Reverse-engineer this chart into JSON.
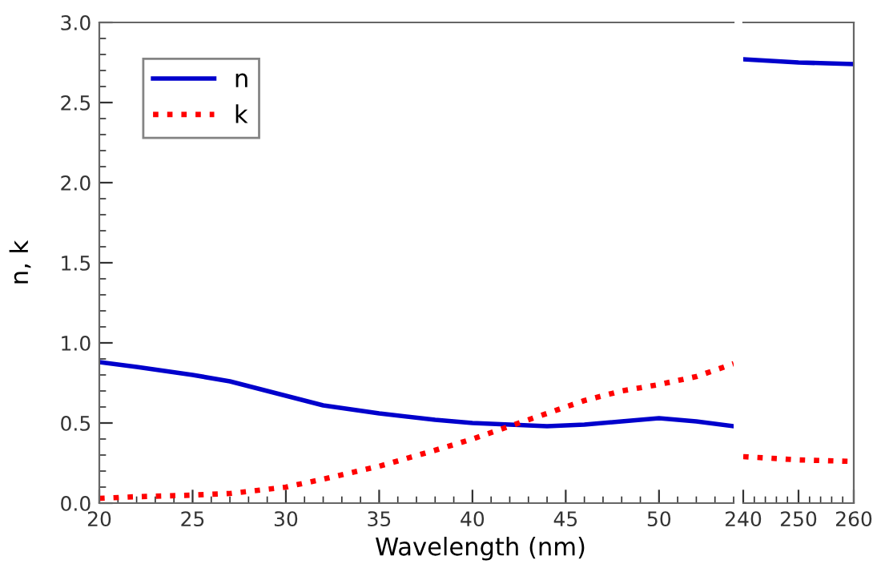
{
  "chart_data": [
    {
      "type": "line",
      "xlabel": "Wavelength (nm)",
      "ylabel": "n, k",
      "xlim": [
        20,
        54
      ],
      "xticks": [
        20,
        25,
        30,
        35,
        40,
        45,
        50
      ],
      "ylim": [
        0,
        3
      ],
      "yticks": [
        {
          "value": 0,
          "label": "0.0"
        },
        0.5,
        {
          "value": 1,
          "label": "1.0"
        },
        1.5,
        {
          "value": 2,
          "label": "2.0"
        },
        2.5,
        {
          "value": 3,
          "label": "3.0"
        }
      ],
      "legend": "top left",
      "grid": false,
      "x": [
        20,
        22,
        25,
        27,
        30,
        32,
        35,
        38,
        40,
        42,
        44,
        46,
        48,
        50,
        52,
        54
      ],
      "series": [
        {
          "name": "n",
          "color": "#0000cc",
          "line_style": "solid",
          "values": [
            0.88,
            0.85,
            0.8,
            0.76,
            0.67,
            0.61,
            0.56,
            0.52,
            0.5,
            0.49,
            0.48,
            0.49,
            0.51,
            0.53,
            0.51,
            0.48
          ]
        },
        {
          "name": "k",
          "color": "#ff0000",
          "line_style": "dotted",
          "values": [
            0.03,
            0.04,
            0.05,
            0.06,
            0.1,
            0.15,
            0.23,
            0.33,
            0.4,
            0.48,
            0.56,
            0.64,
            0.7,
            0.74,
            0.79,
            0.87
          ]
        }
      ]
    },
    {
      "type": "line",
      "xlim": [
        240,
        260
      ],
      "xticks": [
        240,
        250,
        260
      ],
      "ylim": [
        0,
        3
      ],
      "tick_labels": "x",
      "grid": false,
      "x": [
        240,
        250,
        260
      ],
      "series": [
        {
          "color": "#0000cc",
          "line_style": "solid",
          "values": [
            2.77,
            2.75,
            2.74
          ]
        },
        {
          "color": "#ff0000",
          "line_style": "dotted",
          "values": [
            0.29,
            0.27,
            0.26
          ]
        }
      ]
    }
  ]
}
